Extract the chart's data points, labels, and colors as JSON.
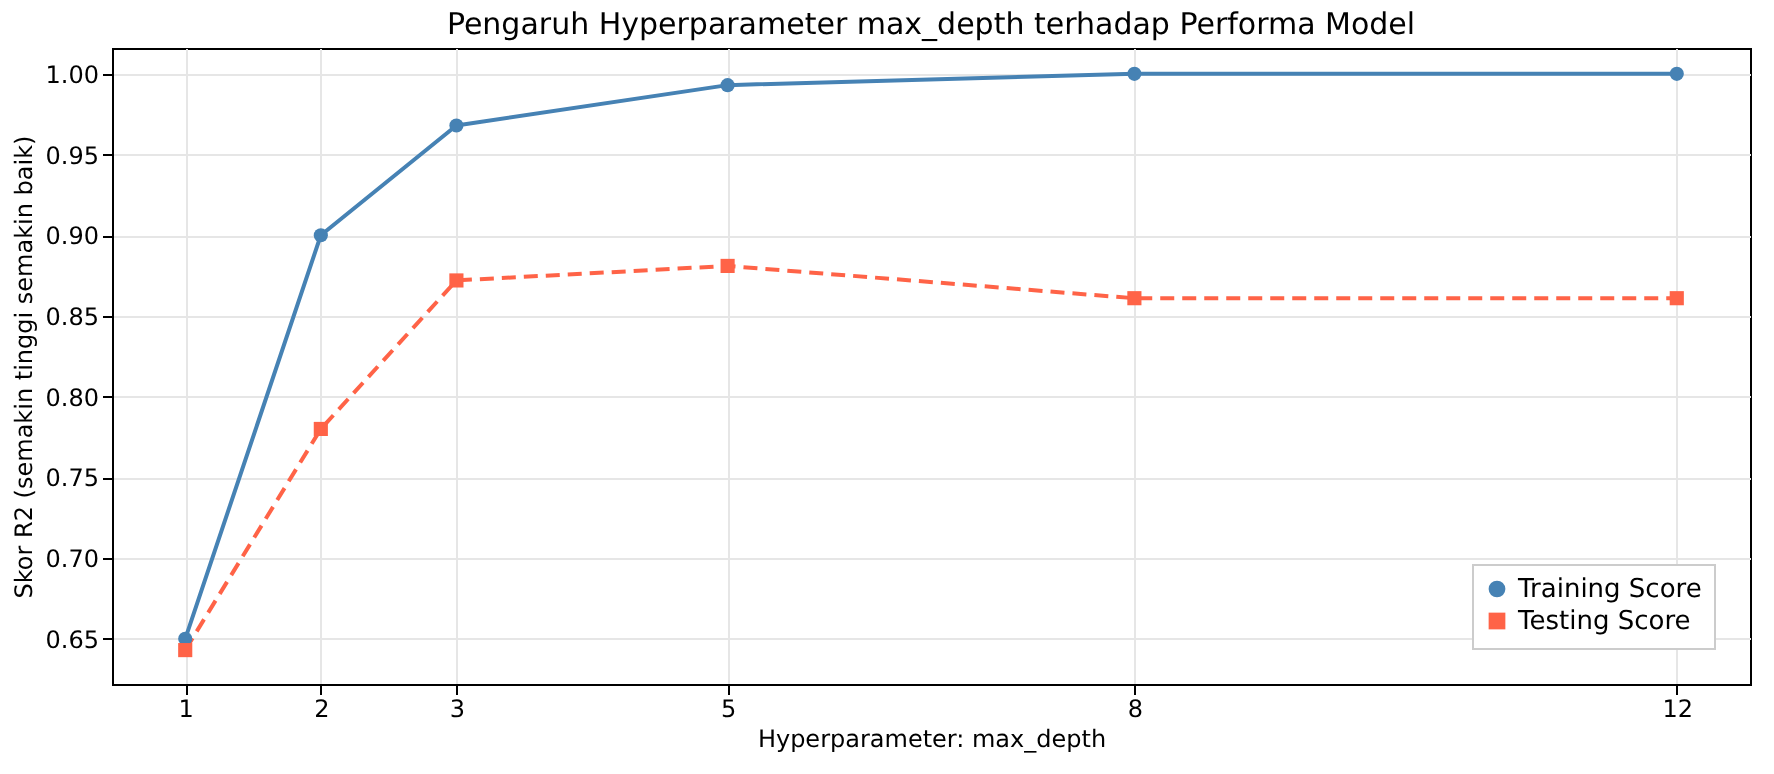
{
  "chart_data": {
    "type": "line",
    "title": "Pengaruh Hyperparameter max_depth terhadap Performa Model",
    "xlabel": "Hyperparameter: max_depth",
    "ylabel": "Skor R2 (semakin tinggi semakin baik)",
    "x": [
      1,
      2,
      3,
      5,
      8,
      12
    ],
    "series": [
      {
        "name": "Training Score",
        "color": "#4682b4",
        "marker": "circle",
        "line_style": "solid",
        "values": [
          0.65,
          0.9,
          0.968,
          0.993,
          1.0,
          1.0
        ]
      },
      {
        "name": "Testing Score",
        "color": "#ff6347",
        "marker": "square",
        "line_style": "dashed",
        "values": [
          0.643,
          0.78,
          0.872,
          0.881,
          0.861,
          0.861
        ]
      }
    ],
    "xlim": [
      0.46,
      12.54
    ],
    "xticks": [
      1,
      2,
      3,
      5,
      8,
      12
    ],
    "ylim": [
      0.622,
      1.016
    ],
    "yticks": [
      0.65,
      {
        "value": 0.7,
        "label": "0.70"
      },
      0.75,
      {
        "value": 0.8,
        "label": "0.80"
      },
      0.85,
      {
        "value": 0.9,
        "label": "0.90"
      },
      0.95,
      {
        "value": 1.0,
        "label": "1.00"
      }
    ],
    "grid": true,
    "legend": "bottom right"
  }
}
